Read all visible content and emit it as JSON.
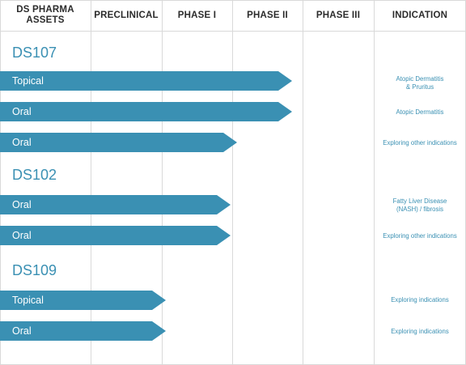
{
  "header": {
    "columns": [
      {
        "label": "DS PHARMA\nASSETS"
      },
      {
        "label": "PRECLINICAL"
      },
      {
        "label": "PHASE I"
      },
      {
        "label": "PHASE II"
      },
      {
        "label": "PHASE III"
      },
      {
        "label": "INDICATION"
      }
    ]
  },
  "assets": [
    {
      "name": "DS107",
      "programs": [
        {
          "route": "Topical",
          "indication": "Atopic Dermatitis\n& Pruritus",
          "stage": "Phase II"
        },
        {
          "route": "Oral",
          "indication": "Atopic Dermatitis",
          "stage": "Phase II"
        },
        {
          "route": "Oral",
          "indication": "Exploring other indications",
          "stage": "Phase I"
        }
      ]
    },
    {
      "name": "DS102",
      "programs": [
        {
          "route": "Oral",
          "indication": "Fatty Liver Disease\n(NASH) / fibrosis",
          "stage": "Phase I"
        },
        {
          "route": "Oral",
          "indication": "Exploring other indications",
          "stage": "Phase I"
        }
      ]
    },
    {
      "name": "DS109",
      "programs": [
        {
          "route": "Topical",
          "indication": "Exploring indications",
          "stage": "Preclinical"
        },
        {
          "route": "Oral",
          "indication": "Exploring indications",
          "stage": "Preclinical"
        }
      ]
    }
  ],
  "colors": {
    "accent": "#3a90b3",
    "grid": "#d9d9d9",
    "header_text": "#2b2b2b"
  }
}
